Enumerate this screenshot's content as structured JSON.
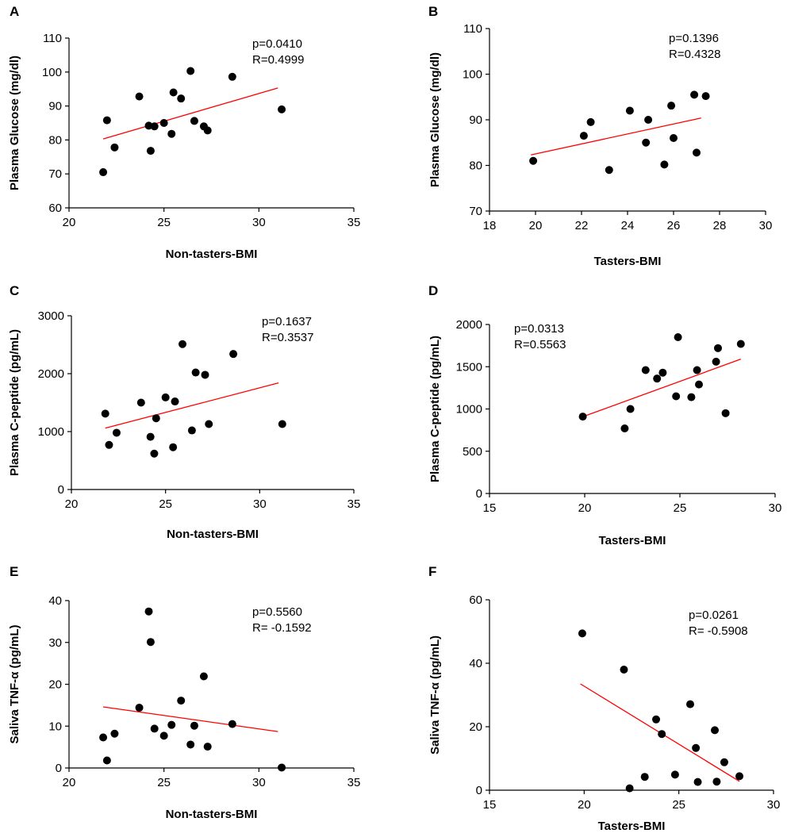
{
  "chart_data": [
    {
      "panel": "A",
      "type": "scatter",
      "xlabel": "Non-tasters-BMI",
      "ylabel": "Plasma Glucose (mg/dl)",
      "xlim": [
        20,
        35
      ],
      "ylim": [
        60,
        110
      ],
      "xticks": [
        "20",
        "25",
        "30",
        "35"
      ],
      "yticks": [
        "60",
        "70",
        "80",
        "90",
        "100",
        "110"
      ],
      "annotations": [
        "p=0.0410",
        "R=0.4999"
      ],
      "points": [
        [
          21.8,
          70.5
        ],
        [
          22.0,
          85.8
        ],
        [
          22.4,
          77.8
        ],
        [
          23.7,
          92.8
        ],
        [
          24.2,
          84.2
        ],
        [
          24.5,
          84.0
        ],
        [
          24.3,
          76.8
        ],
        [
          25.0,
          85.0
        ],
        [
          25.4,
          81.8
        ],
        [
          25.5,
          94.0
        ],
        [
          25.9,
          92.2
        ],
        [
          26.4,
          100.3
        ],
        [
          26.6,
          85.6
        ],
        [
          27.1,
          84.0
        ],
        [
          27.3,
          82.8
        ],
        [
          28.6,
          98.6
        ],
        [
          31.2,
          89.0
        ]
      ],
      "trend": [
        [
          21.8,
          80.3
        ],
        [
          31.0,
          95.3
        ]
      ]
    },
    {
      "panel": "B",
      "type": "scatter",
      "xlabel": "Tasters-BMI",
      "ylabel": "Plasma Glucose (mg/dl)",
      "xlim": [
        18,
        30
      ],
      "ylim": [
        70,
        110
      ],
      "xticks": [
        "18",
        "20",
        "22",
        "24",
        "26",
        "28",
        "30"
      ],
      "yticks": [
        "70",
        "80",
        "90",
        "100",
        "110"
      ],
      "annotations": [
        "p=0.1396",
        "R=0.4328"
      ],
      "points": [
        [
          19.9,
          81.0
        ],
        [
          22.1,
          86.5
        ],
        [
          22.4,
          89.5
        ],
        [
          23.2,
          79.0
        ],
        [
          24.1,
          92.0
        ],
        [
          24.8,
          85.0
        ],
        [
          24.9,
          90.0
        ],
        [
          25.6,
          80.2
        ],
        [
          25.9,
          93.1
        ],
        [
          26.0,
          86.0
        ],
        [
          26.9,
          95.5
        ],
        [
          27.0,
          82.8
        ],
        [
          27.4,
          95.2
        ]
      ],
      "trend": [
        [
          19.8,
          82.3
        ],
        [
          27.2,
          90.4
        ]
      ]
    },
    {
      "panel": "C",
      "type": "scatter",
      "xlabel": "Non-tasters-BMI",
      "ylabel": "Plasma C-peptide (pg/mL)",
      "xlim": [
        20,
        35
      ],
      "ylim": [
        0,
        3000
      ],
      "xticks": [
        "20",
        "25",
        "30",
        "35"
      ],
      "yticks": [
        "0",
        "1000",
        "2000",
        "3000"
      ],
      "annotations": [
        "p=0.1637",
        "R=0.3537"
      ],
      "points": [
        [
          21.8,
          1310
        ],
        [
          22.0,
          770
        ],
        [
          22.4,
          980
        ],
        [
          23.7,
          1500
        ],
        [
          24.2,
          910
        ],
        [
          24.4,
          620
        ],
        [
          24.5,
          1230
        ],
        [
          25.0,
          1590
        ],
        [
          25.4,
          730
        ],
        [
          25.5,
          1520
        ],
        [
          25.9,
          2510
        ],
        [
          26.4,
          1020
        ],
        [
          26.6,
          2020
        ],
        [
          27.1,
          1980
        ],
        [
          27.3,
          1130
        ],
        [
          28.6,
          2340
        ],
        [
          31.2,
          1130
        ]
      ],
      "trend": [
        [
          21.8,
          1060
        ],
        [
          31.0,
          1840
        ]
      ]
    },
    {
      "panel": "D",
      "type": "scatter",
      "xlabel": "Tasters-BMI",
      "ylabel": "Plasma C-peptide (pg/mL)",
      "xlim": [
        15,
        30
      ],
      "ylim": [
        0,
        2000
      ],
      "xticks": [
        "15",
        "20",
        "25",
        "30"
      ],
      "yticks": [
        "0",
        "500",
        "1000",
        "1500",
        "2000"
      ],
      "annotations": [
        "p=0.0313",
        "R=0.5563"
      ],
      "points": [
        [
          19.9,
          910
        ],
        [
          22.1,
          770
        ],
        [
          22.4,
          1000
        ],
        [
          23.2,
          1460
        ],
        [
          23.8,
          1360
        ],
        [
          24.1,
          1430
        ],
        [
          24.8,
          1150
        ],
        [
          24.9,
          1850
        ],
        [
          25.6,
          1140
        ],
        [
          25.9,
          1460
        ],
        [
          26.0,
          1290
        ],
        [
          26.9,
          1560
        ],
        [
          27.0,
          1720
        ],
        [
          27.4,
          950
        ],
        [
          28.2,
          1770
        ]
      ],
      "trend": [
        [
          19.8,
          900
        ],
        [
          28.2,
          1590
        ]
      ]
    },
    {
      "panel": "E",
      "type": "scatter",
      "xlabel": "Non-tasters-BMI",
      "ylabel": "Saliva TNF-α (pg/mL)",
      "xlim": [
        20,
        35
      ],
      "ylim": [
        0,
        40
      ],
      "xticks": [
        "20",
        "25",
        "30",
        "35"
      ],
      "yticks": [
        "0",
        "10",
        "20",
        "30",
        "40"
      ],
      "annotations": [
        "p=0.5560",
        "R= -0.1592"
      ],
      "points": [
        [
          21.8,
          7.3
        ],
        [
          22.0,
          1.8
        ],
        [
          22.4,
          8.2
        ],
        [
          23.7,
          14.4
        ],
        [
          24.2,
          37.4
        ],
        [
          24.3,
          30.1
        ],
        [
          24.5,
          9.4
        ],
        [
          25.0,
          7.7
        ],
        [
          25.4,
          10.3
        ],
        [
          25.9,
          16.1
        ],
        [
          26.4,
          5.6
        ],
        [
          26.6,
          10.1
        ],
        [
          27.1,
          21.9
        ],
        [
          27.3,
          5.1
        ],
        [
          28.6,
          10.5
        ],
        [
          31.2,
          0.1
        ]
      ],
      "trend": [
        [
          21.8,
          14.6
        ],
        [
          31.0,
          8.7
        ]
      ]
    },
    {
      "panel": "F",
      "type": "scatter",
      "xlabel": "Tasters-BMI",
      "ylabel": "Saliva TNF-α (pg/mL)",
      "xlim": [
        15,
        30
      ],
      "ylim": [
        0,
        60
      ],
      "xticks": [
        "15",
        "20",
        "25",
        "30"
      ],
      "yticks": [
        "0",
        "20",
        "40",
        "60"
      ],
      "annotations": [
        "p=0.0261",
        "R= -0.5908"
      ],
      "points": [
        [
          19.9,
          49.4
        ],
        [
          22.1,
          38.0
        ],
        [
          22.4,
          0.6
        ],
        [
          23.2,
          4.2
        ],
        [
          23.8,
          22.3
        ],
        [
          24.1,
          17.7
        ],
        [
          24.8,
          4.9
        ],
        [
          25.6,
          27.1
        ],
        [
          25.9,
          13.3
        ],
        [
          26.0,
          2.6
        ],
        [
          26.9,
          18.9
        ],
        [
          27.0,
          2.7
        ],
        [
          27.4,
          8.8
        ],
        [
          28.2,
          4.4
        ]
      ],
      "trend": [
        [
          19.8,
          33.5
        ],
        [
          28.2,
          2.8
        ]
      ]
    }
  ],
  "colors": {
    "points": "#000000",
    "trend": "#ff0000",
    "axis": "#000000"
  }
}
